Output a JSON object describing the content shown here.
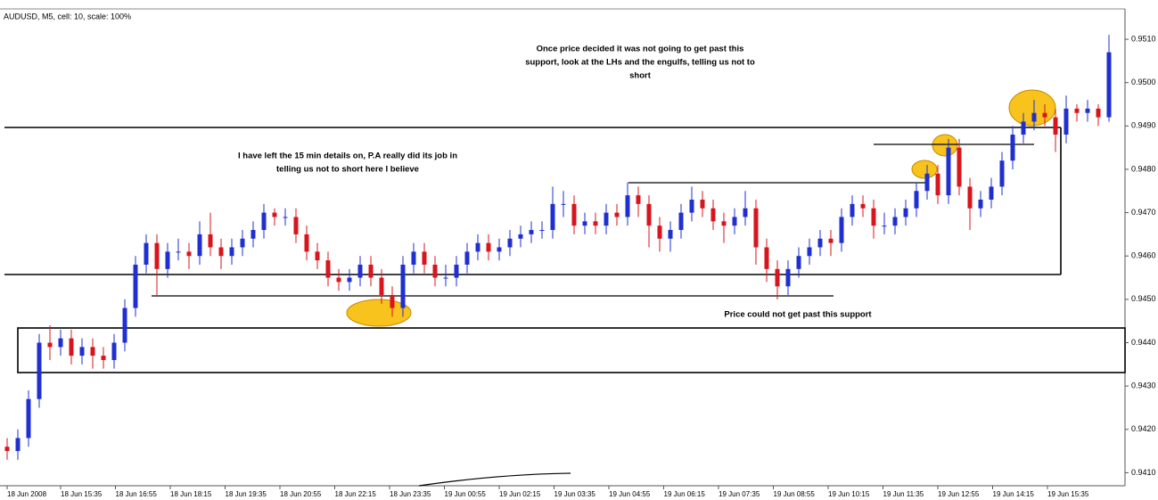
{
  "chart_data": {
    "type": "candlestick",
    "title": "AUDUSD, M5, cell: 10, scale: 100%",
    "annotations": [
      [
        "Once price decided it was not going to get past this",
        "support, look at the LHs and the engulfs, telling us not to",
        "short"
      ],
      [
        "I have left the 15 min details on, P.A really did its job in",
        "telling us not to short here I believe"
      ],
      [
        "Price could not get past this support"
      ]
    ],
    "x_tick_labels": [
      "18 Jun 2008",
      "18 Jun 15:35",
      "18 Jun 16:55",
      "18 Jun 18:15",
      "18 Jun 19:35",
      "18 Jun 20:55",
      "18 Jun 22:15",
      "18 Jun 23:35",
      "19 Jun 00:55",
      "19 Jun 02:15",
      "19 Jun 03:35",
      "19 Jun 04:55",
      "19 Jun 06:15",
      "19 Jun 07:35",
      "19 Jun 08:55",
      "19 Jun 10:15",
      "19 Jun 11:35",
      "19 Jun 12:55",
      "19 Jun 14:15",
      "19 Jun 15:35"
    ],
    "ylim": [
      0.9407,
      0.9517
    ],
    "yticks": [
      {
        "value": 0.941,
        "label": "0.9410"
      },
      {
        "value": 0.942,
        "label": "0.9420"
      },
      {
        "value": 0.943,
        "label": "0.9430"
      },
      {
        "value": 0.944,
        "label": "0.9440"
      },
      {
        "value": 0.945,
        "label": "0.9450"
      },
      {
        "value": 0.946,
        "label": "0.9460"
      },
      {
        "value": 0.947,
        "label": "0.9470"
      },
      {
        "value": 0.948,
        "label": "0.9480"
      },
      {
        "value": 0.949,
        "label": "0.9490"
      },
      {
        "value": 0.95,
        "label": "0.9500"
      },
      {
        "value": 0.951,
        "label": "0.9510"
      }
    ],
    "up_color": "#1f2fd0",
    "down_color": "#d8141c",
    "open": [
      0.9416,
      0.9415,
      0.9418,
      0.9427,
      0.944,
      0.9439,
      0.9441,
      0.9437,
      0.9439,
      0.9437,
      0.9436,
      0.944,
      0.9448,
      0.9458,
      0.9463,
      0.9457,
      0.9461,
      0.9461,
      0.946,
      0.9465,
      0.9462,
      0.946,
      0.9462,
      0.9464,
      0.9466,
      0.947,
      0.9469,
      0.9469,
      0.9465,
      0.9461,
      0.9459,
      0.9455,
      0.9454,
      0.9455,
      0.9458,
      0.9455,
      0.9451,
      0.9448,
      0.9458,
      0.9461,
      0.9458,
      0.9455,
      0.9455,
      0.9458,
      0.9461,
      0.9463,
      0.9461,
      0.9462,
      0.9464,
      0.9465,
      0.9466,
      0.9466,
      0.9472,
      0.9472,
      0.9467,
      0.9468,
      0.9467,
      0.947,
      0.9469,
      0.9474,
      0.9472,
      0.9467,
      0.9464,
      0.9466,
      0.947,
      0.9473,
      0.9471,
      0.9468,
      0.9467,
      0.9469,
      0.9471,
      0.9462,
      0.9457,
      0.9453,
      0.9457,
      0.946,
      0.9462,
      0.9464,
      0.9463,
      0.9469,
      0.9472,
      0.9471,
      0.9467,
      0.9467,
      0.9469,
      0.9471,
      0.9475,
      0.9479,
      0.9474,
      0.9485,
      0.9476,
      0.9471,
      0.9473,
      0.9476,
      0.9482,
      0.9488,
      0.9491,
      0.9493,
      0.9492,
      0.9488,
      0.9494,
      0.9493,
      0.9494,
      0.9492
    ],
    "high": [
      0.9418,
      0.942,
      0.9429,
      0.9442,
      0.9444,
      0.9443,
      0.9443,
      0.9441,
      0.9441,
      0.9439,
      0.9442,
      0.945,
      0.946,
      0.9465,
      0.9465,
      0.9463,
      0.9464,
      0.9463,
      0.9468,
      0.947,
      0.9464,
      0.9464,
      0.9466,
      0.9468,
      0.9472,
      0.9471,
      0.9471,
      0.9471,
      0.9467,
      0.9463,
      0.9461,
      0.9457,
      0.9457,
      0.946,
      0.946,
      0.9457,
      0.9453,
      0.946,
      0.9463,
      0.9463,
      0.946,
      0.9458,
      0.946,
      0.9463,
      0.9465,
      0.9465,
      0.9464,
      0.9466,
      0.9467,
      0.9468,
      0.9468,
      0.9476,
      0.9475,
      0.9474,
      0.947,
      0.947,
      0.9472,
      0.9472,
      0.9477,
      0.9476,
      0.9474,
      0.9469,
      0.9468,
      0.9472,
      0.9476,
      0.9475,
      0.9473,
      0.947,
      0.9471,
      0.9475,
      0.9473,
      0.9464,
      0.9459,
      0.9459,
      0.9462,
      0.9464,
      0.9466,
      0.9466,
      0.9471,
      0.9474,
      0.9474,
      0.9473,
      0.947,
      0.9471,
      0.9473,
      0.9477,
      0.9481,
      0.9481,
      0.9487,
      0.9487,
      0.9478,
      0.9475,
      0.9478,
      0.9484,
      0.949,
      0.9493,
      0.9496,
      0.9495,
      0.9494,
      0.9497,
      0.9495,
      0.9496,
      0.9495,
      0.9511
    ],
    "low": [
      0.9413,
      0.9413,
      0.9416,
      0.9425,
      0.9436,
      0.9437,
      0.9435,
      0.9435,
      0.9434,
      0.9434,
      0.9434,
      0.9438,
      0.9446,
      0.9456,
      0.9451,
      0.9455,
      0.9459,
      0.9457,
      0.9458,
      0.946,
      0.9457,
      0.9458,
      0.946,
      0.9462,
      0.9464,
      0.9467,
      0.9467,
      0.9463,
      0.9459,
      0.9457,
      0.9453,
      0.9452,
      0.9452,
      0.9453,
      0.9453,
      0.9449,
      0.9446,
      0.9446,
      0.9456,
      0.9456,
      0.9453,
      0.9453,
      0.9453,
      0.9456,
      0.9459,
      0.9459,
      0.9459,
      0.946,
      0.9462,
      0.9463,
      0.9464,
      0.9464,
      0.9469,
      0.9465,
      0.9465,
      0.9465,
      0.9465,
      0.9467,
      0.9467,
      0.9469,
      0.9462,
      0.9461,
      0.9461,
      0.9464,
      0.9468,
      0.9469,
      0.9466,
      0.9463,
      0.9465,
      0.9467,
      0.9458,
      0.9454,
      0.945,
      0.9451,
      0.9455,
      0.9458,
      0.946,
      0.946,
      0.9461,
      0.9467,
      0.9469,
      0.9464,
      0.9465,
      0.9465,
      0.9467,
      0.9469,
      0.9473,
      0.9472,
      0.9472,
      0.9474,
      0.9466,
      0.9469,
      0.9471,
      0.9474,
      0.948,
      0.9486,
      0.9489,
      0.949,
      0.9484,
      0.9486,
      0.9491,
      0.9491,
      0.949,
      0.9491
    ],
    "close": [
      0.9415,
      0.9418,
      0.9427,
      0.944,
      0.9439,
      0.9441,
      0.9437,
      0.9439,
      0.9437,
      0.9436,
      0.944,
      0.9448,
      0.9458,
      0.9463,
      0.9457,
      0.9461,
      0.9461,
      0.946,
      0.9465,
      0.9462,
      0.946,
      0.9462,
      0.9464,
      0.9466,
      0.947,
      0.9469,
      0.9469,
      0.9465,
      0.9461,
      0.9459,
      0.9455,
      0.9454,
      0.9455,
      0.9458,
      0.9455,
      0.9451,
      0.9448,
      0.9458,
      0.9461,
      0.9458,
      0.9455,
      0.9455,
      0.9458,
      0.9461,
      0.9463,
      0.9461,
      0.9462,
      0.9464,
      0.9465,
      0.9466,
      0.9466,
      0.9472,
      0.9472,
      0.9467,
      0.9468,
      0.9467,
      0.947,
      0.9469,
      0.9474,
      0.9472,
      0.9467,
      0.9464,
      0.9466,
      0.947,
      0.9473,
      0.9471,
      0.9468,
      0.9467,
      0.9469,
      0.9471,
      0.9462,
      0.9457,
      0.9453,
      0.9457,
      0.946,
      0.9462,
      0.9464,
      0.9463,
      0.9469,
      0.9472,
      0.9471,
      0.9467,
      0.9467,
      0.9469,
      0.9471,
      0.9475,
      0.9479,
      0.9474,
      0.9485,
      0.9476,
      0.9471,
      0.9473,
      0.9476,
      0.9482,
      0.9488,
      0.9491,
      0.9493,
      0.9492,
      0.9488,
      0.9494,
      0.9493,
      0.9494,
      0.9492,
      0.9507
    ]
  }
}
